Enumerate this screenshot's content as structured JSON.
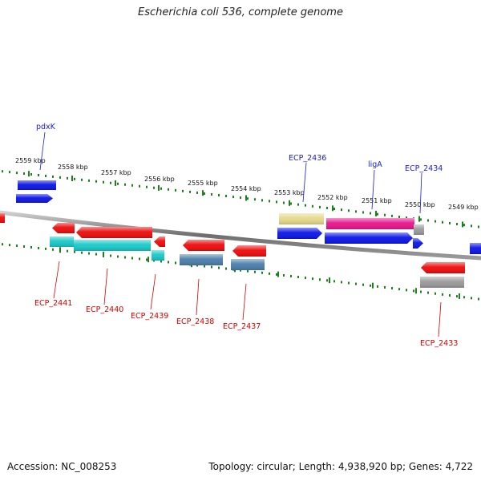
{
  "header": {
    "title": "Escherichia coli 536, complete genome"
  },
  "footer": {
    "accession": "Accession: NC_008253",
    "topology": "Topology: circular; Length: 4,938,920 bp; Genes: 4,722"
  },
  "map": {
    "kbp_labels": [
      "2559 kbp",
      "2558 kbp",
      "2557 kbp",
      "2556 kbp",
      "2555 kbp",
      "2554 kbp",
      "2553 kbp",
      "2552 kbp",
      "2551 kbp",
      "2550 kbp",
      "2549 kbp"
    ],
    "top_gene_labels": [
      "pdxK",
      "ECP_2436",
      "ligA",
      "ECP_2434"
    ],
    "bottom_gene_labels": [
      "ECP_2441",
      "ECP_2440",
      "ECP_2439",
      "ECP_2438",
      "ECP_2437",
      "ECP_2433"
    ],
    "colors": {
      "blue": "#0a14e6",
      "red": "#ee0a0a",
      "cyan": "#16c8c8",
      "steel": "#4a7eaa",
      "khaki": "#e6d98a",
      "magenta": "#e8148c",
      "gray": "#9a9a9a",
      "tick_green": "#1e7f1e"
    }
  }
}
